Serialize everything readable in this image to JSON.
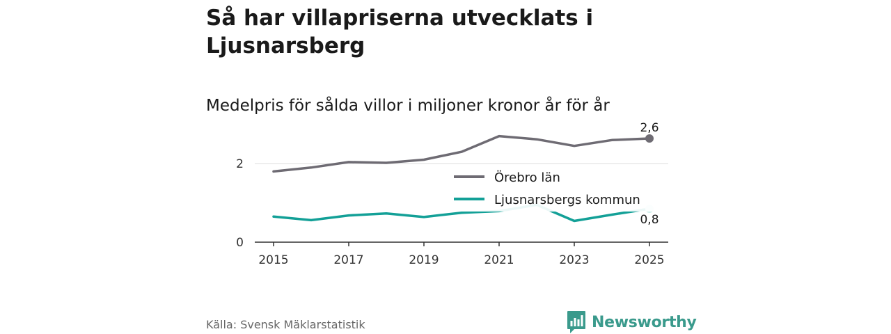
{
  "title": "Så har villapriserna utvecklats i Ljusnarsberg",
  "subtitle": "Medelpris för sålda villor i miljoner kronor år för år",
  "source": "Källa: Svensk Mäklarstatistik",
  "brand": {
    "name": "Newsworthy",
    "color": "#3a9a8c"
  },
  "chart_data": {
    "type": "line",
    "title": "Så har villapriserna utvecklats i Ljusnarsberg",
    "subtitle": "Medelpris för sålda villor i miljoner kronor år för år",
    "xlabel": "",
    "ylabel": "",
    "x": [
      2015,
      2016,
      2017,
      2018,
      2019,
      2020,
      2021,
      2022,
      2023,
      2024,
      2025
    ],
    "x_ticks": [
      2015,
      2017,
      2019,
      2021,
      2023,
      2025
    ],
    "y_ticks": [
      0,
      2
    ],
    "y_tick_labels": [
      "0",
      "2"
    ],
    "ylim": [
      0,
      2.8
    ],
    "grid": "horizontal",
    "legend_position": "right, between the lines",
    "series": [
      {
        "name": "Örebro län",
        "color": "#6e6b73",
        "values": [
          1.8,
          1.9,
          2.04,
          2.02,
          2.1,
          2.3,
          2.7,
          2.62,
          2.45,
          2.6,
          2.64
        ],
        "end_label": "2,6"
      },
      {
        "name": "Ljusnarsbergs kommun",
        "color": "#13a097",
        "values": [
          0.65,
          0.56,
          0.68,
          0.73,
          0.64,
          0.75,
          0.79,
          0.95,
          0.54,
          0.7,
          0.85
        ],
        "end_label": "0,8"
      }
    ]
  }
}
